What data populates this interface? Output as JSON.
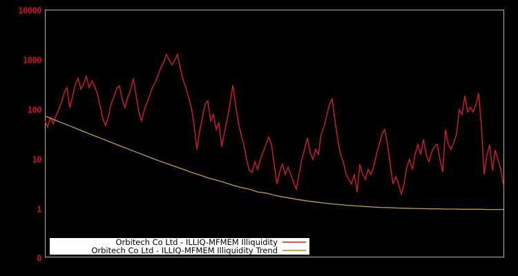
{
  "window": {
    "background": "#000000"
  },
  "chart_data": {
    "type": "line",
    "title": "",
    "x_axis": {
      "label": "",
      "tick_labels_visible": false
    },
    "y_axis": {
      "scale": "log",
      "ticks": [
        "0",
        "1",
        "10",
        "100",
        "1000",
        "10000"
      ],
      "tick_color": "#cc1122"
    },
    "frame_color": "#b3b3b3",
    "legend_position": "bottom-inside",
    "series": [
      {
        "name": "Orbitech Co Ltd - ILLIQ-MFMEM Illiquidity",
        "color": "#cc1b2b",
        "values": [
          60,
          45,
          70,
          52,
          76,
          100,
          140,
          220,
          280,
          110,
          180,
          320,
          430,
          260,
          330,
          470,
          280,
          380,
          300,
          210,
          120,
          65,
          48,
          75,
          130,
          180,
          270,
          300,
          160,
          110,
          180,
          250,
          420,
          200,
          90,
          60,
          100,
          140,
          200,
          290,
          360,
          500,
          700,
          900,
          1300,
          1000,
          800,
          1000,
          1300,
          700,
          400,
          280,
          180,
          110,
          50,
          16,
          36,
          70,
          130,
          150,
          60,
          80,
          40,
          55,
          18,
          35,
          65,
          130,
          310,
          130,
          56,
          32,
          20,
          10,
          6.0,
          5.5,
          9.0,
          6.3,
          10,
          14,
          20,
          28,
          20,
          8.0,
          3.2,
          5.6,
          8.0,
          5.0,
          7.0,
          5.0,
          3.5,
          2.5,
          5.0,
          10,
          16,
          27,
          14,
          10,
          16,
          12.6,
          32,
          45,
          75,
          130,
          165,
          60,
          25,
          12.6,
          9.0,
          5.0,
          4.0,
          3.2,
          5.0,
          2.2,
          8.0,
          5.0,
          4.0,
          6.3,
          5.0,
          7.0,
          12.6,
          20,
          32,
          40,
          20,
          8.0,
          3.2,
          4.5,
          3.2,
          2.0,
          3.2,
          7.0,
          10,
          6.3,
          12.6,
          20,
          12.6,
          25,
          12.6,
          9.0,
          14,
          18,
          20,
          10,
          5.6,
          40,
          20,
          16,
          22,
          32,
          100,
          80,
          190,
          90,
          112,
          90,
          126,
          215,
          45,
          5.0,
          12.6,
          19.5,
          6.0,
          15.5,
          10,
          6.3,
          3.0
        ]
      },
      {
        "name": "Orbitech Co Ltd - ILLIQ-MFMEM Illiquidity Trend",
        "color": "#c9a227",
        "values": [
          75,
          64.3,
          55.2,
          47.4,
          40.7,
          34.9,
          30.0,
          25.9,
          22.3,
          19.2,
          16.6,
          14.3,
          12.4,
          10.7,
          9.3,
          8.1,
          7.1,
          6.2,
          5.4,
          4.8,
          4.2,
          3.8,
          3.4,
          3.0,
          2.7,
          2.5,
          2.2,
          2.1,
          1.9,
          1.76,
          1.65,
          1.55,
          1.46,
          1.39,
          1.33,
          1.27,
          1.23,
          1.19,
          1.16,
          1.13,
          1.1,
          1.08,
          1.07,
          1.05,
          1.04,
          1.03,
          1.02,
          1.01,
          1.01,
          1.0,
          1.0,
          0.99,
          0.99,
          0.99,
          0.98,
          0.98,
          0.98
        ]
      }
    ]
  },
  "legend": {
    "items": [
      {
        "label": "Orbitech Co Ltd - ILLIQ-MFMEM Illiquidity",
        "color": "#d9574d"
      },
      {
        "label": "Orbitech Co Ltd - ILLIQ-MFMEM Illiquidity Trend",
        "color": "#c9a93f"
      }
    ]
  }
}
